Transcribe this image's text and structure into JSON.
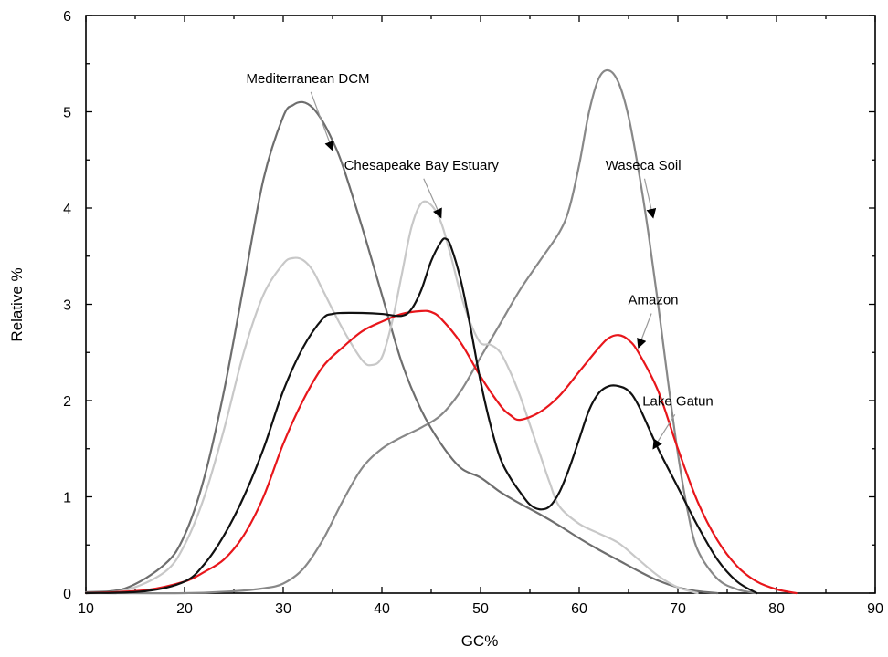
{
  "chart_data": {
    "type": "line",
    "title": "",
    "xlabel": "GC%",
    "ylabel": "Relative %",
    "xlim": [
      10,
      90
    ],
    "ylim": [
      0,
      6
    ],
    "xticks": [
      10,
      20,
      30,
      40,
      50,
      60,
      70,
      80,
      90
    ],
    "yticks": [
      0,
      1,
      2,
      3,
      4,
      5,
      6
    ],
    "grid": false,
    "legend": "none",
    "series": [
      {
        "name": "Mediterranean DCM",
        "color": "#6e6e6e",
        "x": [
          10,
          14,
          18,
          20,
          22,
          24,
          26,
          28,
          30,
          31,
          32,
          33,
          34,
          35,
          36,
          38,
          40,
          42,
          44,
          46,
          48,
          50,
          52,
          54,
          56,
          58,
          60,
          62,
          64,
          66,
          68,
          70,
          72,
          74
        ],
        "y": [
          0.01,
          0.05,
          0.3,
          0.6,
          1.2,
          2.1,
          3.2,
          4.3,
          4.95,
          5.07,
          5.1,
          5.04,
          4.9,
          4.7,
          4.45,
          3.8,
          3.1,
          2.4,
          1.9,
          1.55,
          1.3,
          1.2,
          1.05,
          0.93,
          0.82,
          0.7,
          0.57,
          0.45,
          0.34,
          0.23,
          0.13,
          0.06,
          0.02,
          0.0
        ]
      },
      {
        "name": "Chesapeake Bay Estuary",
        "color": "#c8c8c8",
        "x": [
          10,
          14,
          18,
          20,
          22,
          24,
          26,
          28,
          30,
          31,
          32,
          33,
          34,
          36,
          38,
          39,
          40,
          41,
          42,
          43,
          44,
          45,
          46,
          47,
          48,
          49,
          50,
          51,
          52,
          53,
          54,
          55,
          56,
          57,
          58,
          60,
          62,
          64,
          66,
          68,
          70,
          72
        ],
        "y": [
          0.0,
          0.03,
          0.22,
          0.5,
          1.0,
          1.7,
          2.5,
          3.1,
          3.42,
          3.48,
          3.46,
          3.35,
          3.15,
          2.75,
          2.42,
          2.37,
          2.45,
          2.8,
          3.3,
          3.8,
          4.05,
          4.03,
          3.85,
          3.5,
          3.1,
          2.8,
          2.6,
          2.58,
          2.5,
          2.3,
          2.05,
          1.75,
          1.45,
          1.15,
          0.9,
          0.72,
          0.62,
          0.52,
          0.35,
          0.18,
          0.06,
          0.0
        ]
      },
      {
        "name": "Waseca Soil",
        "color": "#888888",
        "x": [
          10,
          20,
          25,
          28,
          30,
          32,
          34,
          36,
          38,
          40,
          42,
          44,
          46,
          48,
          50,
          52,
          54,
          56,
          58,
          59,
          60,
          61,
          62,
          63,
          64,
          65,
          66,
          67,
          68,
          69,
          70,
          71,
          72,
          74,
          76,
          78
        ],
        "y": [
          0.0,
          0.0,
          0.02,
          0.05,
          0.1,
          0.25,
          0.55,
          0.95,
          1.3,
          1.5,
          1.62,
          1.72,
          1.85,
          2.1,
          2.45,
          2.8,
          3.15,
          3.45,
          3.75,
          4.0,
          4.45,
          5.0,
          5.35,
          5.43,
          5.3,
          4.95,
          4.4,
          3.75,
          3.0,
          2.2,
          1.45,
          0.85,
          0.45,
          0.15,
          0.04,
          0.0
        ]
      },
      {
        "name": "Amazon",
        "color": "#e8161b",
        "x": [
          10,
          16,
          20,
          22,
          24,
          26,
          28,
          30,
          32,
          34,
          36,
          38,
          40,
          42,
          44,
          45,
          46,
          48,
          50,
          52,
          53,
          54,
          56,
          58,
          60,
          62,
          63,
          64,
          65,
          66,
          68,
          70,
          72,
          74,
          76,
          78,
          80,
          82
        ],
        "y": [
          0.0,
          0.03,
          0.12,
          0.22,
          0.35,
          0.6,
          1.0,
          1.55,
          2.0,
          2.35,
          2.55,
          2.72,
          2.82,
          2.9,
          2.93,
          2.92,
          2.85,
          2.6,
          2.25,
          1.95,
          1.85,
          1.8,
          1.88,
          2.05,
          2.3,
          2.55,
          2.65,
          2.68,
          2.63,
          2.5,
          2.1,
          1.5,
          0.95,
          0.55,
          0.28,
          0.12,
          0.04,
          0.0
        ]
      },
      {
        "name": "Lake Gatun",
        "color": "#111111",
        "x": [
          10,
          16,
          20,
          22,
          24,
          26,
          28,
          30,
          32,
          34,
          35,
          36,
          38,
          40,
          42,
          43,
          44,
          45,
          46,
          46.5,
          47,
          48,
          49,
          50,
          51,
          52,
          53,
          54,
          55,
          56,
          57,
          58,
          59,
          60,
          61,
          62,
          63,
          64,
          65,
          66,
          68,
          70,
          72,
          74,
          76,
          78
        ],
        "y": [
          0.0,
          0.02,
          0.12,
          0.3,
          0.6,
          1.0,
          1.5,
          2.1,
          2.55,
          2.85,
          2.9,
          2.91,
          2.91,
          2.9,
          2.88,
          2.95,
          3.15,
          3.45,
          3.65,
          3.68,
          3.6,
          3.25,
          2.75,
          2.2,
          1.75,
          1.4,
          1.2,
          1.05,
          0.92,
          0.87,
          0.9,
          1.05,
          1.3,
          1.6,
          1.9,
          2.08,
          2.15,
          2.15,
          2.1,
          1.95,
          1.5,
          1.1,
          0.7,
          0.35,
          0.12,
          0.0
        ]
      }
    ],
    "annotations": [
      {
        "text": "Mediterranean DCM",
        "series": "Mediterranean DCM",
        "label_at": [
          32.5,
          5.3
        ],
        "arrow_to": [
          35,
          4.6
        ]
      },
      {
        "text": "Chesapeake Bay Estuary",
        "series": "Chesapeake Bay Estuary",
        "label_at": [
          44,
          4.4
        ],
        "arrow_to": [
          46,
          3.9
        ]
      },
      {
        "text": "Waseca Soil",
        "series": "Waseca Soil",
        "label_at": [
          66.5,
          4.4
        ],
        "arrow_to": [
          67.5,
          3.9
        ]
      },
      {
        "text": "Amazon",
        "series": "Amazon",
        "label_at": [
          67.5,
          3.0
        ],
        "arrow_to": [
          66,
          2.55
        ]
      },
      {
        "text": "Lake Gatun",
        "series": "Lake Gatun",
        "label_at": [
          70,
          1.95
        ],
        "arrow_to": [
          67.5,
          1.5
        ]
      }
    ]
  }
}
